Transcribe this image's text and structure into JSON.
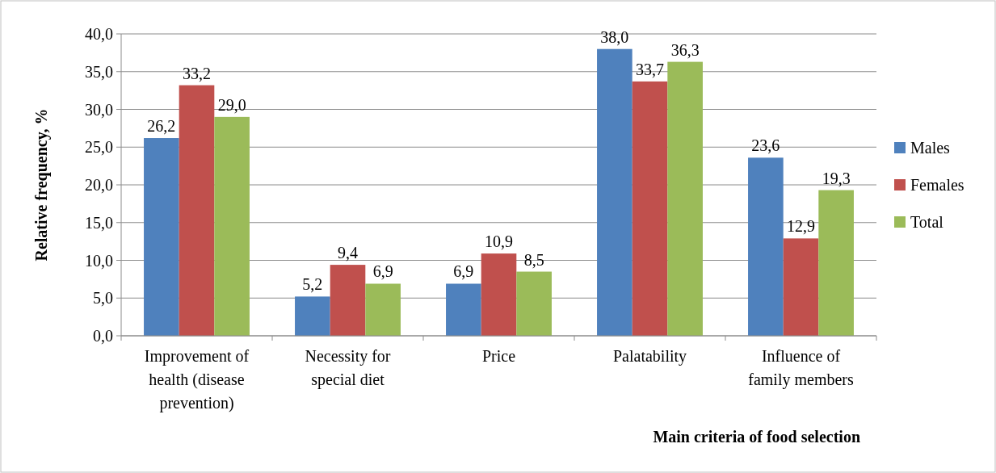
{
  "chart_data": {
    "type": "bar",
    "xlabel": "Main criteria of food selection",
    "ylabel": "Relative frequency, %",
    "categories": [
      "Improvement of health (disease prevention)",
      "Necessity for special diet",
      "Price",
      "Palatability",
      "Influence of family members"
    ],
    "series": [
      {
        "name": "Males",
        "color": "#4f81bd",
        "values": [
          26.2,
          5.2,
          6.9,
          38.0,
          23.6
        ],
        "value_labels": [
          "26,2",
          "5,2",
          "6,9",
          "38,0",
          "23,6"
        ]
      },
      {
        "name": "Females",
        "color": "#c0504d",
        "values": [
          33.2,
          9.4,
          10.9,
          33.7,
          12.9
        ],
        "value_labels": [
          "33,2",
          "9,4",
          "10,9",
          "33,7",
          "12,9"
        ]
      },
      {
        "name": "Total",
        "color": "#9bbb59",
        "values": [
          29.0,
          6.9,
          8.5,
          36.3,
          19.3
        ],
        "value_labels": [
          "29,0",
          "6,9",
          "8,5",
          "36,3",
          "19,3"
        ]
      }
    ],
    "ylim": [
      0,
      40
    ],
    "yticks": [
      {
        "value": 0,
        "label": "0,0"
      },
      {
        "value": 5,
        "label": "5,0"
      },
      {
        "value": 10,
        "label": "10,0"
      },
      {
        "value": 15,
        "label": "15,0"
      },
      {
        "value": 20,
        "label": "20,0"
      },
      {
        "value": 25,
        "label": "25,0"
      },
      {
        "value": 30,
        "label": "30,0"
      },
      {
        "value": 35,
        "label": "35,0"
      },
      {
        "value": 40,
        "label": "40,0"
      }
    ],
    "grid": "y",
    "legend": "right"
  }
}
